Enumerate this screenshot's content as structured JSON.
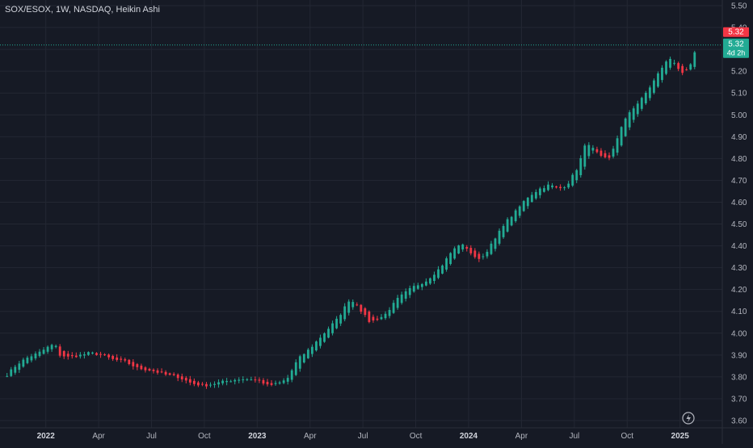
{
  "chart_data": {
    "type": "candlestick",
    "title": "SOX/ESOX, 1W, NASDAQ, Heikin Ashi",
    "y_ticks": [
      "5.50",
      "5.40",
      "5.30",
      "5.20",
      "5.10",
      "5.00",
      "4.90",
      "4.80",
      "4.70",
      "4.60",
      "4.50",
      "4.40",
      "4.30",
      "4.20",
      "4.10",
      "4.00",
      "3.90",
      "3.80",
      "3.70",
      "3.60"
    ],
    "ylim": [
      3.6,
      5.5
    ],
    "x_labels": [
      {
        "label": "2022",
        "pos": 1.0,
        "strong": true
      },
      {
        "label": "Apr",
        "pos": 4.0,
        "strong": false
      },
      {
        "label": "Jul",
        "pos": 7.0,
        "strong": false
      },
      {
        "label": "Oct",
        "pos": 10.0,
        "strong": false
      },
      {
        "label": "2023",
        "pos": 13.0,
        "strong": true
      },
      {
        "label": "Apr",
        "pos": 16.0,
        "strong": false
      },
      {
        "label": "Jul",
        "pos": 19.0,
        "strong": false
      },
      {
        "label": "Oct",
        "pos": 22.0,
        "strong": false
      },
      {
        "label": "2024",
        "pos": 25.0,
        "strong": true
      },
      {
        "label": "Apr",
        "pos": 28.0,
        "strong": false
      },
      {
        "label": "Jul",
        "pos": 31.0,
        "strong": false
      },
      {
        "label": "Oct",
        "pos": 34.0,
        "strong": false
      },
      {
        "label": "2025",
        "pos": 37.0,
        "strong": true
      }
    ],
    "x_range": [
      -1.6,
      39.4
    ],
    "up_color": "#22ab94",
    "down_color": "#f23645",
    "last_price": {
      "value": 5.32,
      "label_top": "5.32",
      "label_mid": "5.32",
      "countdown": "4d 2h"
    },
    "keypoints": [
      [
        -1.2,
        3.81
      ],
      [
        -0.6,
        3.86
      ],
      [
        0.0,
        3.89
      ],
      [
        0.6,
        3.91
      ],
      [
        1.2,
        3.94
      ],
      [
        1.5,
        3.95
      ],
      [
        1.8,
        3.9
      ],
      [
        2.3,
        3.89
      ],
      [
        3.0,
        3.9
      ],
      [
        3.5,
        3.91
      ],
      [
        4.2,
        3.9
      ],
      [
        4.8,
        3.88
      ],
      [
        5.5,
        3.87
      ],
      [
        6.2,
        3.84
      ],
      [
        7.0,
        3.83
      ],
      [
        7.8,
        3.81
      ],
      [
        8.5,
        3.8
      ],
      [
        9.3,
        3.77
      ],
      [
        10.0,
        3.76
      ],
      [
        10.6,
        3.77
      ],
      [
        11.2,
        3.78
      ],
      [
        12.0,
        3.79
      ],
      [
        12.7,
        3.79
      ],
      [
        13.2,
        3.78
      ],
      [
        13.6,
        3.76
      ],
      [
        14.2,
        3.77
      ],
      [
        14.7,
        3.79
      ],
      [
        15.3,
        3.88
      ],
      [
        16.0,
        3.93
      ],
      [
        16.8,
        4.0
      ],
      [
        17.6,
        4.07
      ],
      [
        18.2,
        4.15
      ],
      [
        18.6,
        4.14
      ],
      [
        19.0,
        4.09
      ],
      [
        19.4,
        4.05
      ],
      [
        20.2,
        4.08
      ],
      [
        21.0,
        4.16
      ],
      [
        21.8,
        4.21
      ],
      [
        22.6,
        4.24
      ],
      [
        23.4,
        4.3
      ],
      [
        24.0,
        4.37
      ],
      [
        24.5,
        4.41
      ],
      [
        24.9,
        4.39
      ],
      [
        25.4,
        4.34
      ],
      [
        25.8,
        4.35
      ],
      [
        26.5,
        4.43
      ],
      [
        27.0,
        4.5
      ],
      [
        27.6,
        4.55
      ],
      [
        28.3,
        4.62
      ],
      [
        29.0,
        4.66
      ],
      [
        29.6,
        4.68
      ],
      [
        30.1,
        4.66
      ],
      [
        30.6,
        4.68
      ],
      [
        31.2,
        4.76
      ],
      [
        31.7,
        4.88
      ],
      [
        32.1,
        4.84
      ],
      [
        32.6,
        4.8
      ],
      [
        33.0,
        4.8
      ],
      [
        33.6,
        4.93
      ],
      [
        34.1,
        5.01
      ],
      [
        34.8,
        5.07
      ],
      [
        35.4,
        5.14
      ],
      [
        36.0,
        5.22
      ],
      [
        36.4,
        5.26
      ],
      [
        36.7,
        5.24
      ],
      [
        37.0,
        5.2
      ],
      [
        37.2,
        5.18
      ],
      [
        37.6,
        5.23
      ],
      [
        38.0,
        5.32
      ]
    ]
  }
}
